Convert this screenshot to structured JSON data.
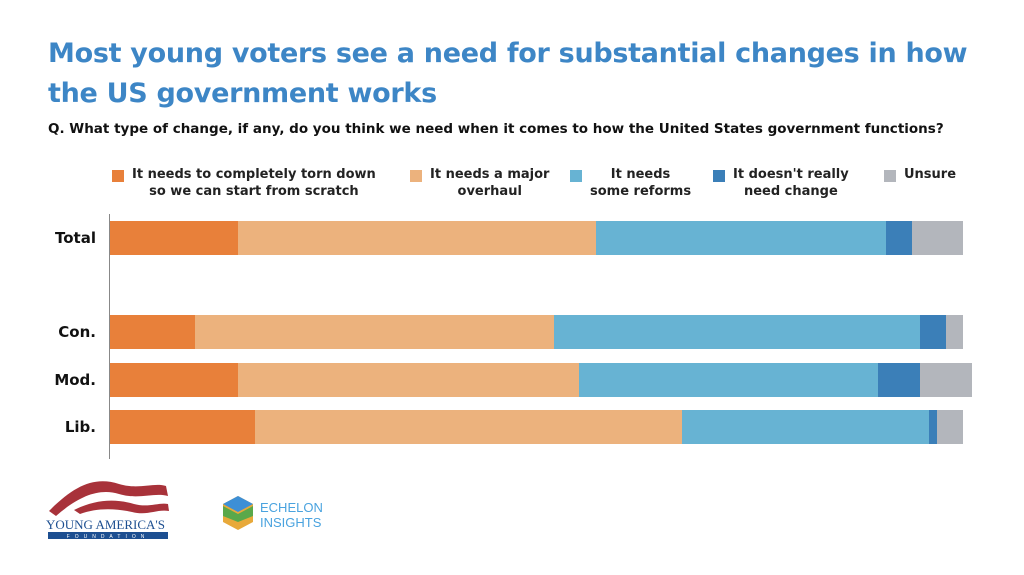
{
  "title": "Most young voters see a need for substantial changes in how the US government works",
  "question": "Q. What type of change, if any, do you think we need when it comes to how the United States government functions?",
  "logos": {
    "yaf": "YOUNG AMERICA'S FOUNDATION",
    "echelon_1": "ECHELON",
    "echelon_2": "INSIGHTS"
  },
  "chart_data": {
    "type": "bar",
    "orientation": "horizontal-stacked-100",
    "categories": [
      "Total",
      "Con.",
      "Mod.",
      "Lib."
    ],
    "series": [
      {
        "name": "It needs to completely torn down\nso we can start from scratch",
        "color": "#e8803a",
        "values": [
          15,
          10,
          15,
          17
        ]
      },
      {
        "name": "It needs a major\noverhaul",
        "color": "#ecb27d",
        "values": [
          42,
          42,
          40,
          50
        ]
      },
      {
        "name": "It needs\nsome reforms",
        "color": "#67b3d3",
        "values": [
          34,
          43,
          35,
          29
        ]
      },
      {
        "name": "It doesn't really\nneed change",
        "color": "#3b7fb8",
        "values": [
          3,
          3,
          5,
          1
        ]
      },
      {
        "name": "Unsure",
        "color": "#b3b6bc",
        "values": [
          6,
          2,
          6,
          3
        ]
      }
    ],
    "value_format": "{v}%",
    "legend": "top",
    "xlim": [
      0,
      100
    ],
    "grid": false
  }
}
